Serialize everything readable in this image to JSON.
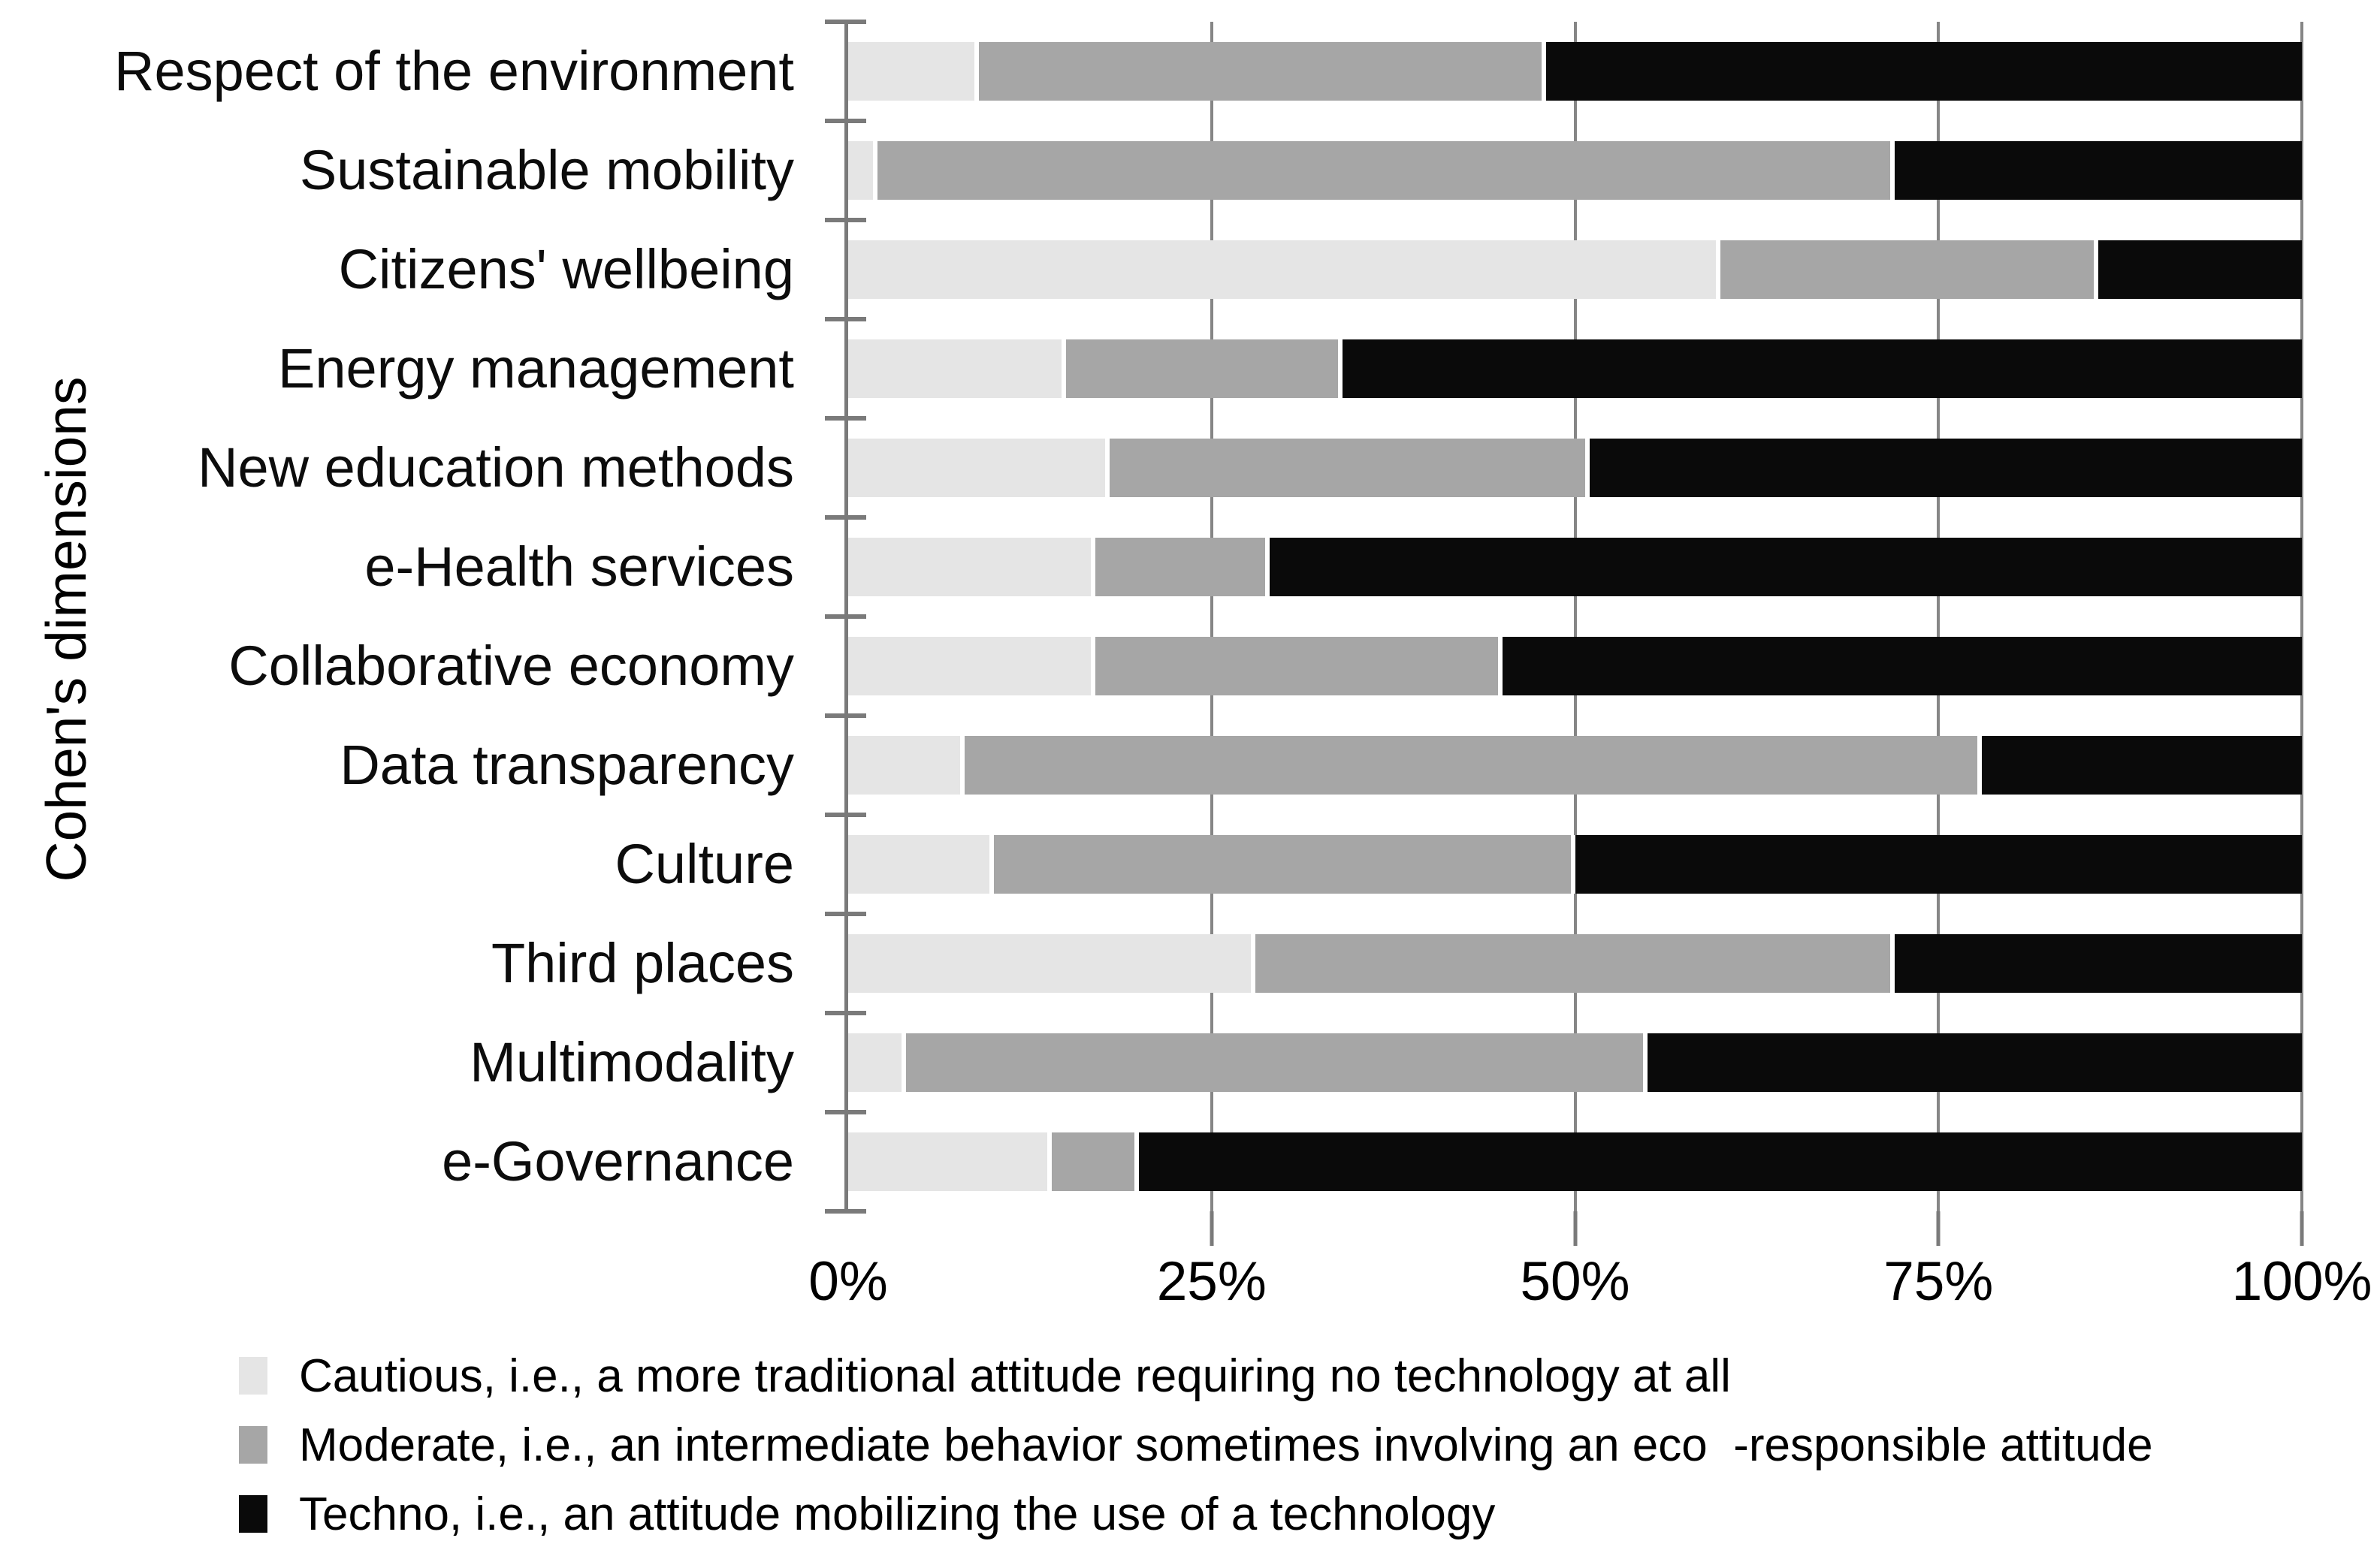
{
  "chart_data": {
    "type": "bar",
    "orientation": "horizontal",
    "stacked": true,
    "units": "percent",
    "title": "",
    "xlabel": "",
    "ylabel": "Cohen's dimensions",
    "xlim": [
      0,
      100
    ],
    "x_tick_values": [
      0,
      25,
      50,
      75,
      100
    ],
    "x_tick_labels": [
      "0%",
      "25%",
      "50%",
      "75%",
      "100%"
    ],
    "grid": "vertical-at-ticks",
    "legend_position": "bottom",
    "categories": [
      "Respect of the environment",
      "Sustainable mobility",
      "Citizens' wellbeing",
      "Energy management",
      "New education methods",
      "e-Health services",
      "Collaborative economy",
      "Data transparency",
      "Culture",
      "Third places",
      "Multimodality",
      "e-Governance"
    ],
    "series": [
      {
        "name": "Cautious",
        "color": "#e5e5e5",
        "values": [
          9,
          2,
          60,
          15,
          18,
          17,
          17,
          8,
          10,
          28,
          4,
          14
        ]
      },
      {
        "name": "Moderate",
        "color": "#a6a6a6",
        "values": [
          39,
          70,
          26,
          19,
          33,
          12,
          28,
          70,
          40,
          44,
          51,
          6
        ]
      },
      {
        "name": "Techno",
        "color": "#0a0a0a",
        "values": [
          52,
          28,
          14,
          66,
          49,
          71,
          55,
          22,
          50,
          28,
          45,
          80
        ]
      }
    ]
  },
  "legend": {
    "items": [
      {
        "series": "Cautious",
        "swatch_color": "#e5e5e5",
        "label": "Cautious, i.e., a more traditional attitude requiring no technology at all"
      },
      {
        "series": "Moderate",
        "swatch_color": "#a6a6a6",
        "label": "Moderate, i.e., an intermediate behavior sometimes involving an eco  -responsible attitude"
      },
      {
        "series": "Techno",
        "swatch_color": "#0a0a0a",
        "label": "Techno, i.e., an attitude mobilizing the use of a technology"
      }
    ]
  },
  "colors": {
    "axis": "#7a7a7a",
    "gridline": "#868686",
    "background": "#ffffff",
    "text": "#000000"
  }
}
